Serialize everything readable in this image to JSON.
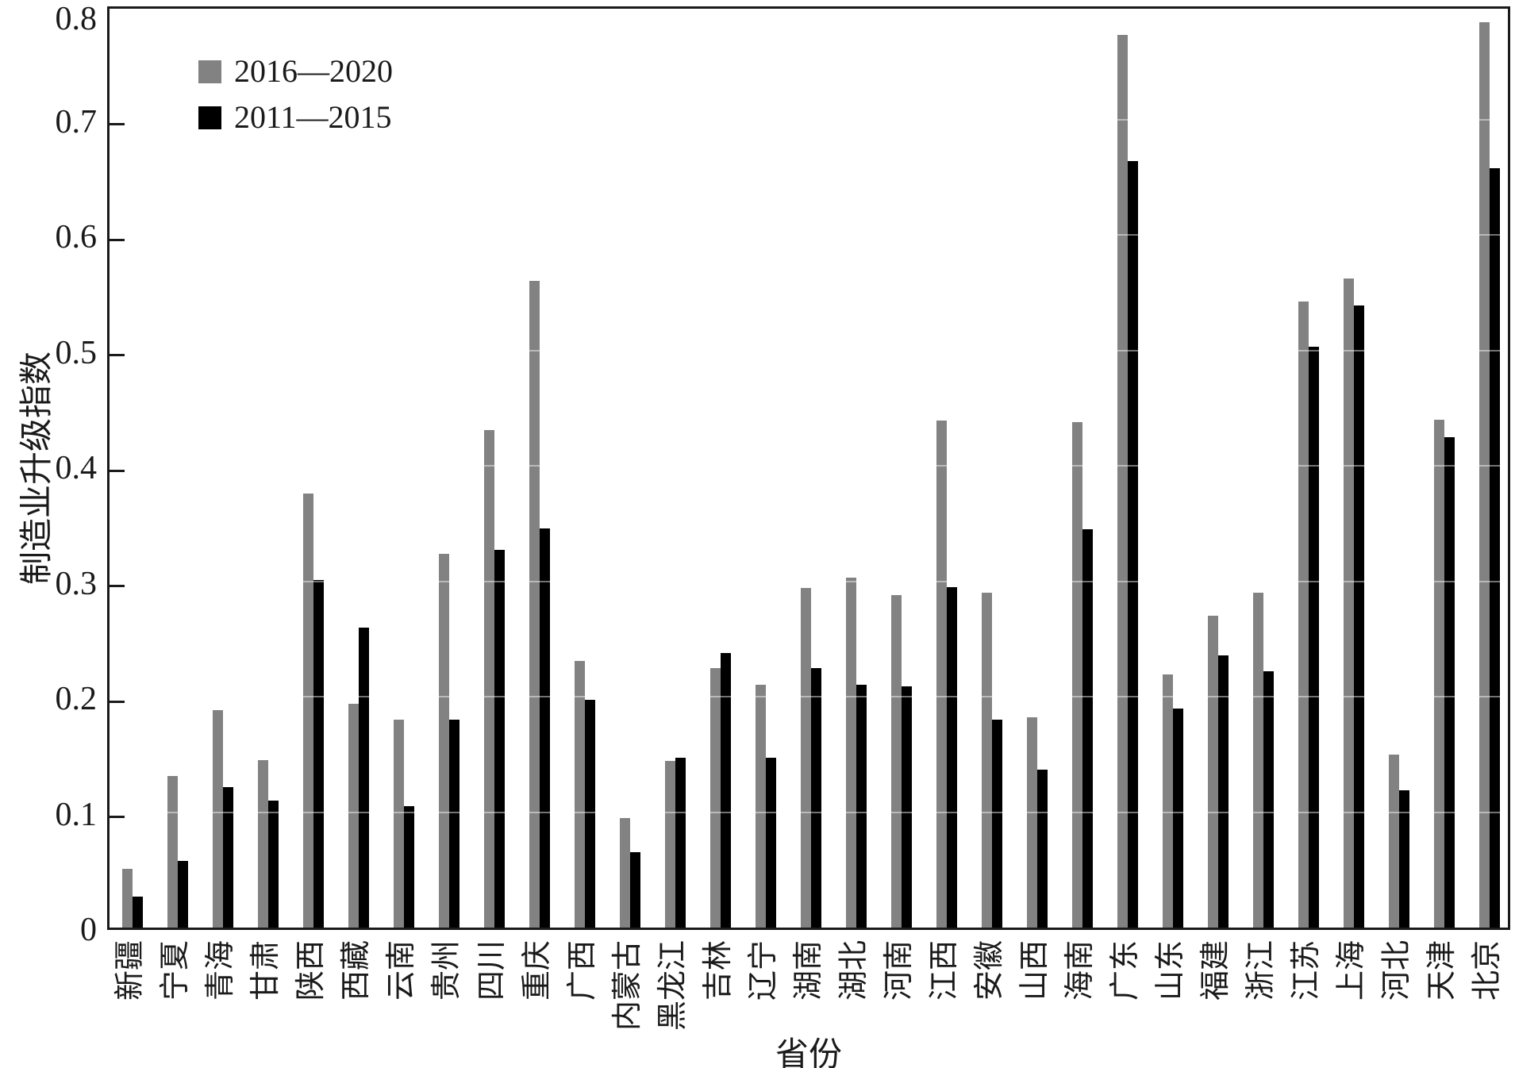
{
  "chart_data": {
    "type": "bar",
    "title": "",
    "xlabel": "省份",
    "ylabel": "制造业升级指数",
    "ylim": [
      0,
      0.8
    ],
    "ytick_labels": [
      "0",
      "0.1",
      "0.2",
      "0.3",
      "0.4",
      "0.5",
      "0.6",
      "0.7",
      "0.8"
    ],
    "grid": "off (faint light gridline marks visible only across bars at each 0.1)",
    "legend_position": "upper-left-inside",
    "categories": [
      "新疆",
      "宁夏",
      "青海",
      "甘肃",
      "陕西",
      "西藏",
      "云南",
      "贵州",
      "四川",
      "重庆",
      "广西",
      "内蒙古",
      "黑龙江",
      "吉林",
      "辽宁",
      "湖南",
      "湖北",
      "河南",
      "江西",
      "安徽",
      "山西",
      "海南",
      "广东",
      "山东",
      "福建",
      "浙江",
      "江苏",
      "上海",
      "河北",
      "天津",
      "北京"
    ],
    "series": [
      {
        "name": "2016—2020",
        "color": "#828282",
        "values": [
          0.051,
          0.131,
          0.188,
          0.145,
          0.376,
          0.194,
          0.18,
          0.324,
          0.431,
          0.56,
          0.231,
          0.095,
          0.144,
          0.225,
          0.21,
          0.294,
          0.303,
          0.288,
          0.439,
          0.29,
          0.182,
          0.438,
          0.773,
          0.219,
          0.27,
          0.29,
          0.542,
          0.562,
          0.15,
          0.44,
          0.784
        ]
      },
      {
        "name": "2011—2015",
        "color": "#000000",
        "values": [
          0.027,
          0.058,
          0.122,
          0.11,
          0.301,
          0.26,
          0.105,
          0.18,
          0.327,
          0.346,
          0.197,
          0.065,
          0.147,
          0.238,
          0.147,
          0.225,
          0.21,
          0.209,
          0.295,
          0.18,
          0.137,
          0.345,
          0.664,
          0.19,
          0.236,
          0.222,
          0.503,
          0.539,
          0.119,
          0.425,
          0.658
        ]
      }
    ]
  },
  "colors": {
    "background": "#ffffff",
    "axis": "#1a1a1a",
    "series_gray": "#828282",
    "series_black": "#000000"
  }
}
